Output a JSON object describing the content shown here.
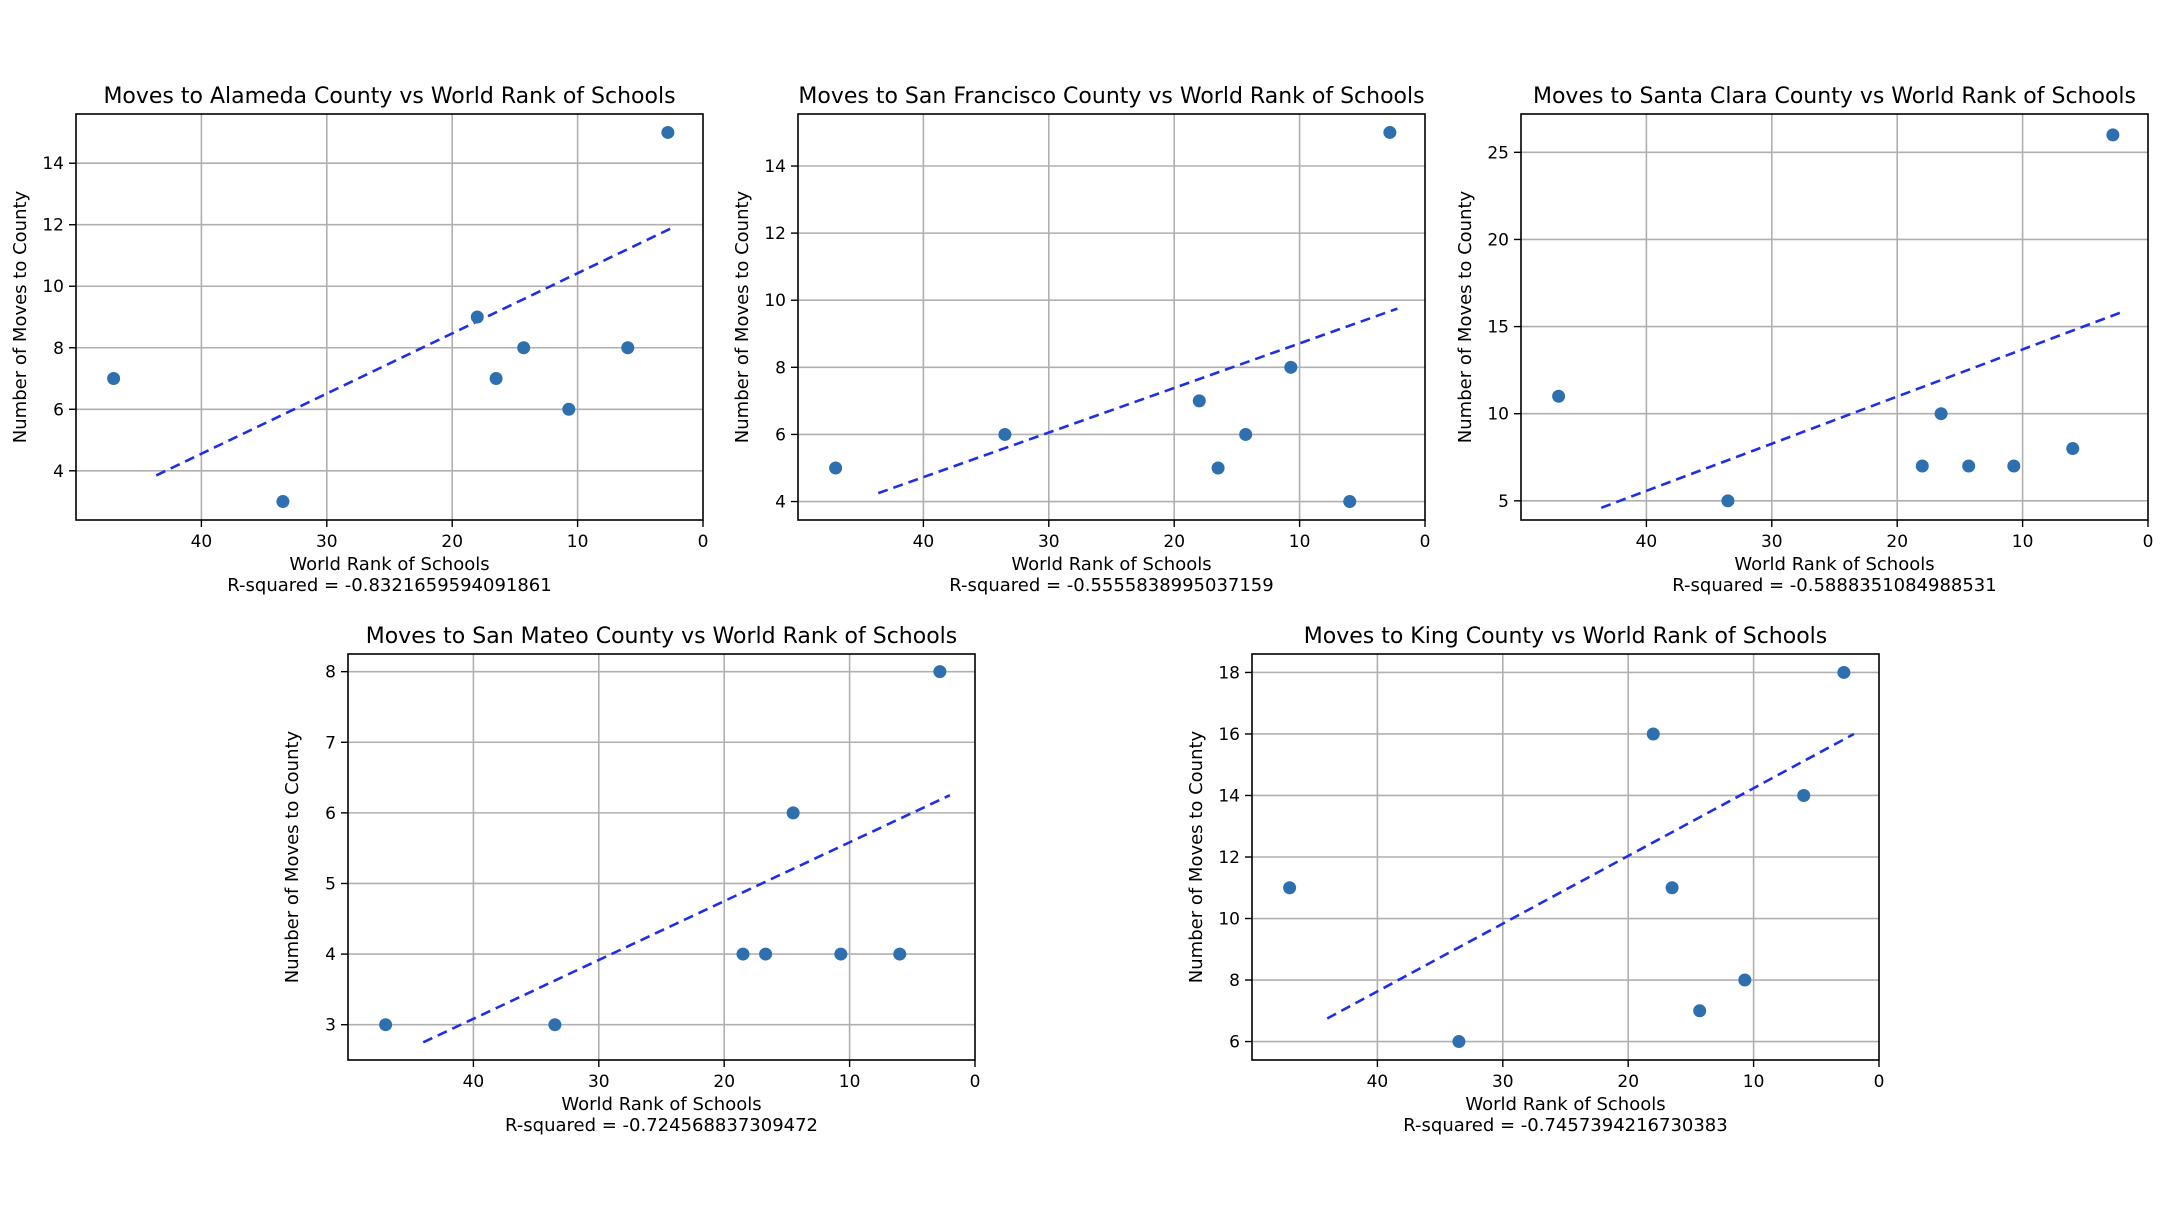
{
  "chart_data": [
    {
      "type": "scatter",
      "title": "Moves to Alameda County vs World Rank of Schools",
      "xlabel": "World Rank of Schools",
      "ylabel": "Number of Moves to County",
      "caption": "R-squared = -0.8321659594091861",
      "xlim": [
        50,
        0
      ],
      "ylim": [
        2.4,
        15.6
      ],
      "xticks": [
        40,
        30,
        20,
        10,
        0
      ],
      "yticks": [
        4,
        6,
        8,
        10,
        12,
        14
      ],
      "grid": true,
      "points": [
        {
          "x": 47,
          "y": 7
        },
        {
          "x": 33.5,
          "y": 3
        },
        {
          "x": 18,
          "y": 9
        },
        {
          "x": 16.5,
          "y": 7
        },
        {
          "x": 14.3,
          "y": 8
        },
        {
          "x": 10.7,
          "y": 6
        },
        {
          "x": 6,
          "y": 8
        },
        {
          "x": 2.8,
          "y": 15
        }
      ],
      "trendline": {
        "x": [
          43.6,
          2.2
        ],
        "y": [
          3.85,
          11.95
        ]
      },
      "colors": {
        "points": "#2e6faf",
        "trendline": "#1f2fe6"
      }
    },
    {
      "type": "scatter",
      "title": "Moves to San Francisco County vs World Rank of Schools",
      "xlabel": "World Rank of Schools",
      "ylabel": "Number of Moves to County",
      "caption": "R-squared = -0.5555838995037159",
      "xlim": [
        50,
        0
      ],
      "ylim": [
        3.45,
        15.55
      ],
      "xticks": [
        40,
        30,
        20,
        10,
        0
      ],
      "yticks": [
        4,
        6,
        8,
        10,
        12,
        14
      ],
      "grid": true,
      "points": [
        {
          "x": 47,
          "y": 5
        },
        {
          "x": 33.5,
          "y": 6
        },
        {
          "x": 18,
          "y": 7
        },
        {
          "x": 16.5,
          "y": 5
        },
        {
          "x": 14.3,
          "y": 6
        },
        {
          "x": 10.7,
          "y": 8
        },
        {
          "x": 6,
          "y": 4
        },
        {
          "x": 2.8,
          "y": 15
        }
      ],
      "trendline": {
        "x": [
          43.6,
          2.2
        ],
        "y": [
          4.25,
          9.75
        ]
      },
      "colors": {
        "points": "#2e6faf",
        "trendline": "#1f2fe6"
      }
    },
    {
      "type": "scatter",
      "title": "Moves to Santa Clara County vs World Rank of Schools",
      "xlabel": "World Rank of Schools",
      "ylabel": "Number of Moves to County",
      "caption": "R-squared = -0.5888351084988531",
      "xlim": [
        50,
        0
      ],
      "ylim": [
        3.9,
        27.2
      ],
      "xticks": [
        40,
        30,
        20,
        10,
        0
      ],
      "yticks": [
        5,
        10,
        15,
        20,
        25
      ],
      "grid": true,
      "points": [
        {
          "x": 47,
          "y": 11
        },
        {
          "x": 33.5,
          "y": 5
        },
        {
          "x": 18,
          "y": 7
        },
        {
          "x": 16.5,
          "y": 10
        },
        {
          "x": 14.3,
          "y": 7
        },
        {
          "x": 10.7,
          "y": 7
        },
        {
          "x": 6,
          "y": 8
        },
        {
          "x": 2.8,
          "y": 26
        }
      ],
      "trendline": {
        "x": [
          43.6,
          2.2
        ],
        "y": [
          4.6,
          15.8
        ]
      },
      "colors": {
        "points": "#2e6faf",
        "trendline": "#1f2fe6"
      }
    },
    {
      "type": "scatter",
      "title": "Moves to San Mateo County vs World Rank of Schools",
      "xlabel": "World Rank of Schools",
      "ylabel": "Number of Moves to County",
      "caption": "R-squared = -0.724568837309472",
      "xlim": [
        50,
        0
      ],
      "ylim": [
        2.5,
        8.25
      ],
      "xticks": [
        40,
        30,
        20,
        10,
        0
      ],
      "yticks": [
        3,
        4,
        5,
        6,
        7,
        8
      ],
      "grid": true,
      "points": [
        {
          "x": 47,
          "y": 3
        },
        {
          "x": 33.5,
          "y": 3
        },
        {
          "x": 18.5,
          "y": 4
        },
        {
          "x": 16.7,
          "y": 4
        },
        {
          "x": 14.5,
          "y": 6
        },
        {
          "x": 10.7,
          "y": 4
        },
        {
          "x": 6,
          "y": 4
        },
        {
          "x": 2.8,
          "y": 8
        }
      ],
      "trendline": {
        "x": [
          44,
          2
        ],
        "y": [
          2.75,
          6.25
        ]
      },
      "colors": {
        "points": "#2e6faf",
        "trendline": "#1f2fe6"
      }
    },
    {
      "type": "scatter",
      "title": "Moves to King County vs World Rank of Schools",
      "xlabel": "World Rank of Schools",
      "ylabel": "Number of Moves to County",
      "caption": "R-squared = -0.7457394216730383",
      "xlim": [
        50,
        0
      ],
      "ylim": [
        5.4,
        18.6
      ],
      "xticks": [
        40,
        30,
        20,
        10,
        0
      ],
      "yticks": [
        6,
        8,
        10,
        12,
        14,
        16,
        18
      ],
      "grid": true,
      "points": [
        {
          "x": 47,
          "y": 11
        },
        {
          "x": 33.5,
          "y": 6
        },
        {
          "x": 18,
          "y": 16
        },
        {
          "x": 16.5,
          "y": 11
        },
        {
          "x": 14.3,
          "y": 7
        },
        {
          "x": 10.7,
          "y": 8
        },
        {
          "x": 6,
          "y": 14
        },
        {
          "x": 2.8,
          "y": 18
        }
      ],
      "trendline": {
        "x": [
          44,
          2
        ],
        "y": [
          6.75,
          16.0
        ]
      },
      "colors": {
        "points": "#2e6faf",
        "trendline": "#1f2fe6"
      }
    }
  ]
}
